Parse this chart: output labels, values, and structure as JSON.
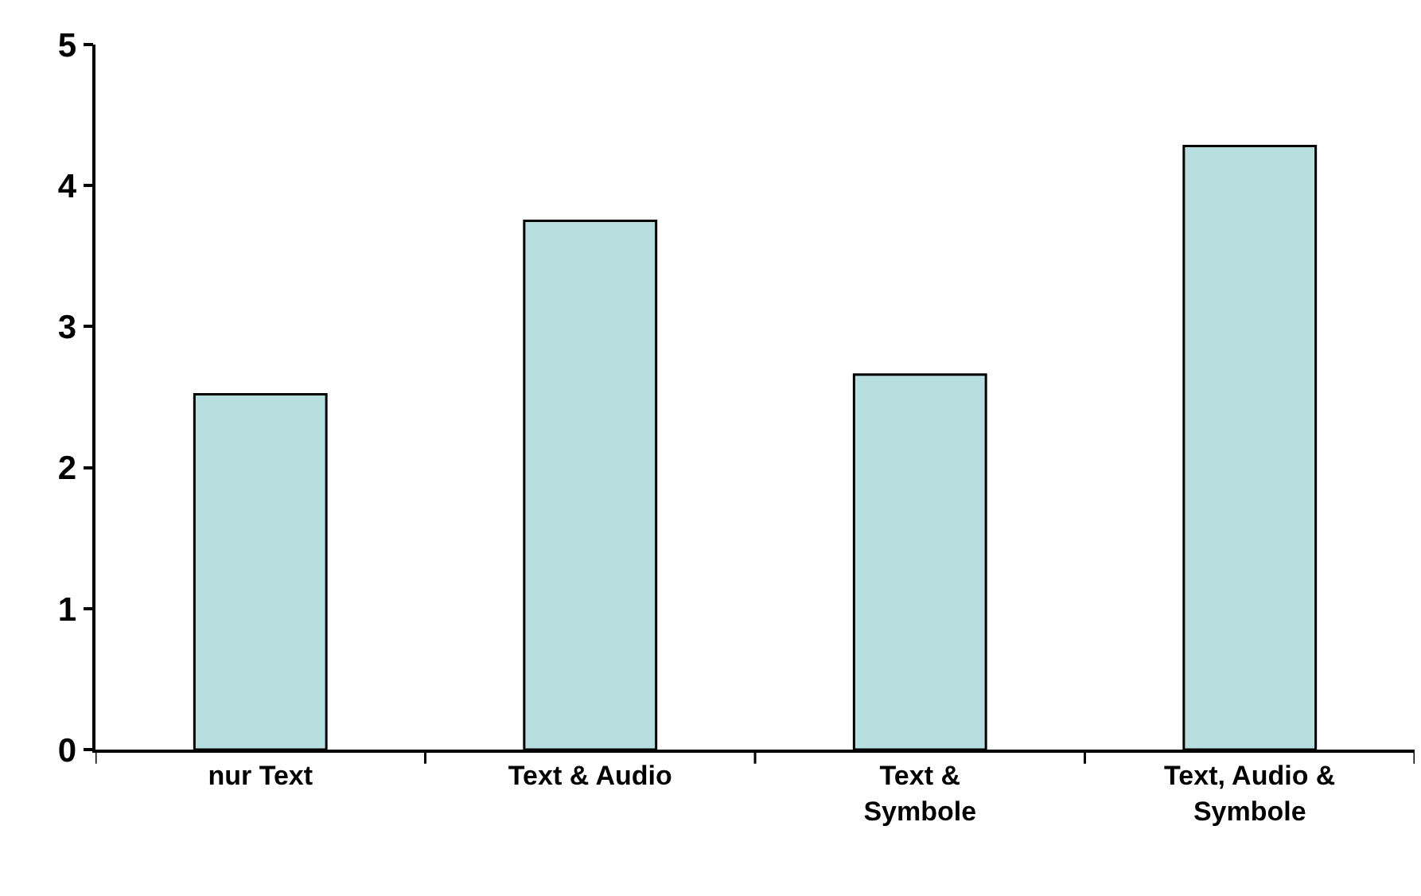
{
  "chart_data": {
    "type": "bar",
    "categories": [
      "nur Text",
      "Text & Audio",
      "Text & Symbole",
      "Text, Audio & Symbole"
    ],
    "values": [
      2.52,
      3.75,
      2.66,
      4.28
    ],
    "color": "#b8dfe0",
    "ylim": [
      0,
      5
    ],
    "yticks": [
      0,
      1,
      2,
      3,
      4,
      5
    ],
    "grid": false
  }
}
